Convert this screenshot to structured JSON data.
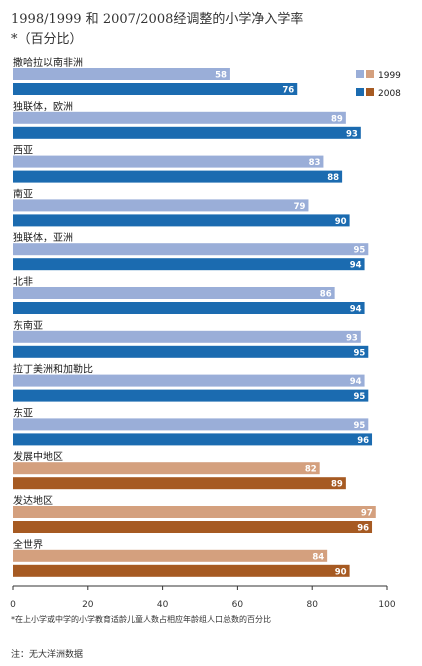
{
  "title_line1": "1998/1999 和 2007/2008经调整的小学净入学率",
  "title_line2": "*（百分比）",
  "footnote": "*在上小学或中学的小学教育适龄儿童人数占相应年龄组人口总数的百分比",
  "source": "注：无大洋洲数据",
  "colors": {
    "region_1999": "#9aaed8",
    "region_2008": "#1b6bb0",
    "group_1999": "#d4a07e",
    "group_2008": "#a65a22"
  },
  "chart_data": {
    "type": "bar",
    "orientation": "horizontal",
    "xlim": [
      0,
      100
    ],
    "x_ticks": [
      "0",
      "20",
      "40",
      "60",
      "80",
      "100"
    ],
    "legend": {
      "position": "top-right",
      "entries": [
        "1999",
        "2008"
      ]
    },
    "series_names": [
      "1999",
      "2008"
    ],
    "categories": [
      {
        "label": "撒哈拉以南非洲",
        "v1999": 58,
        "v2008": 76,
        "group": "region"
      },
      {
        "label": "独联体，欧洲",
        "v1999": 89,
        "v2008": 93,
        "group": "region"
      },
      {
        "label": "西亚",
        "v1999": 83,
        "v2008": 88,
        "group": "region"
      },
      {
        "label": "南亚",
        "v1999": 79,
        "v2008": 90,
        "group": "region"
      },
      {
        "label": "独联体，亚洲",
        "v1999": 95,
        "v2008": 94,
        "group": "region"
      },
      {
        "label": "北非",
        "v1999": 86,
        "v2008": 94,
        "group": "region"
      },
      {
        "label": "东南亚",
        "v1999": 93,
        "v2008": 95,
        "group": "region"
      },
      {
        "label": "拉丁美洲和加勒比",
        "v1999": 94,
        "v2008": 95,
        "group": "region"
      },
      {
        "label": "东亚",
        "v1999": 95,
        "v2008": 96,
        "group": "region"
      },
      {
        "label": "发展中地区",
        "v1999": 82,
        "v2008": 89,
        "group": "aggregate"
      },
      {
        "label": "发达地区",
        "v1999": 97,
        "v2008": 96,
        "group": "aggregate"
      },
      {
        "label": "全世界",
        "v1999": 84,
        "v2008": 90,
        "group": "aggregate"
      }
    ]
  }
}
